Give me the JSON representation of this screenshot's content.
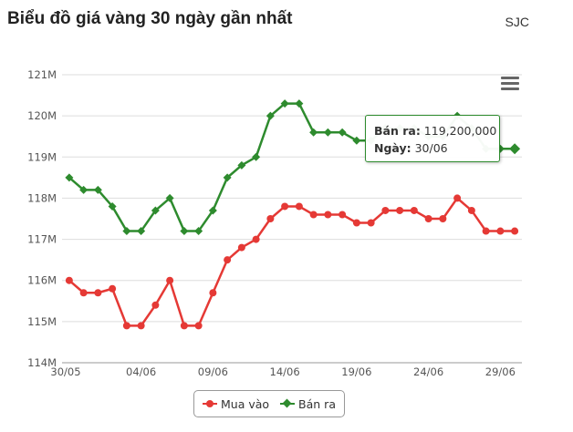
{
  "header": {
    "title": "Biểu đồ giá vàng 30 ngày gần nhất",
    "brand": "SJC"
  },
  "tooltip": {
    "label_1": "Bán ra:",
    "value_1": "119,200,000",
    "label_2": "Ngày:",
    "value_2": "30/06"
  },
  "colors": {
    "buy": "#e53935",
    "sell": "#2e8b2e",
    "grid": "#dddddd",
    "axis": "#555555"
  },
  "icons": {
    "menu": "hamburger-menu-icon"
  },
  "chart_data": {
    "type": "line",
    "title": "Biểu đồ giá vàng 30 ngày gần nhất",
    "x_tick_labels": [
      "30/05",
      "04/06",
      "09/06",
      "14/06",
      "19/06",
      "24/06",
      "29/06"
    ],
    "y_tick_labels": [
      "114M",
      "115M",
      "116M",
      "117M",
      "118M",
      "119M",
      "120M",
      "121M"
    ],
    "ylim": [
      114,
      121
    ],
    "y_unit": "M",
    "grid": true,
    "legend_position": "bottom-center",
    "series": [
      {
        "name": "Mua vào",
        "marker": "circle",
        "values": [
          116.0,
          115.7,
          115.7,
          115.8,
          114.9,
          114.9,
          115.4,
          116.0,
          114.9,
          114.9,
          115.7,
          116.5,
          116.8,
          117.0,
          117.5,
          117.8,
          117.8,
          117.6,
          117.6,
          117.6,
          117.4,
          117.4,
          117.7,
          117.7,
          117.7,
          117.5,
          117.5,
          118.0,
          117.7,
          117.2,
          117.2,
          117.2
        ]
      },
      {
        "name": "Bán ra",
        "marker": "diamond",
        "values": [
          118.5,
          118.2,
          118.2,
          117.8,
          117.2,
          117.2,
          117.7,
          118.0,
          117.2,
          117.2,
          117.7,
          118.5,
          118.8,
          119.0,
          120.0,
          120.3,
          120.3,
          119.6,
          119.6,
          119.6,
          119.4,
          119.4,
          119.7,
          119.7,
          119.7,
          119.5,
          119.5,
          120.0,
          119.7,
          119.2,
          119.2,
          119.2
        ]
      }
    ]
  }
}
